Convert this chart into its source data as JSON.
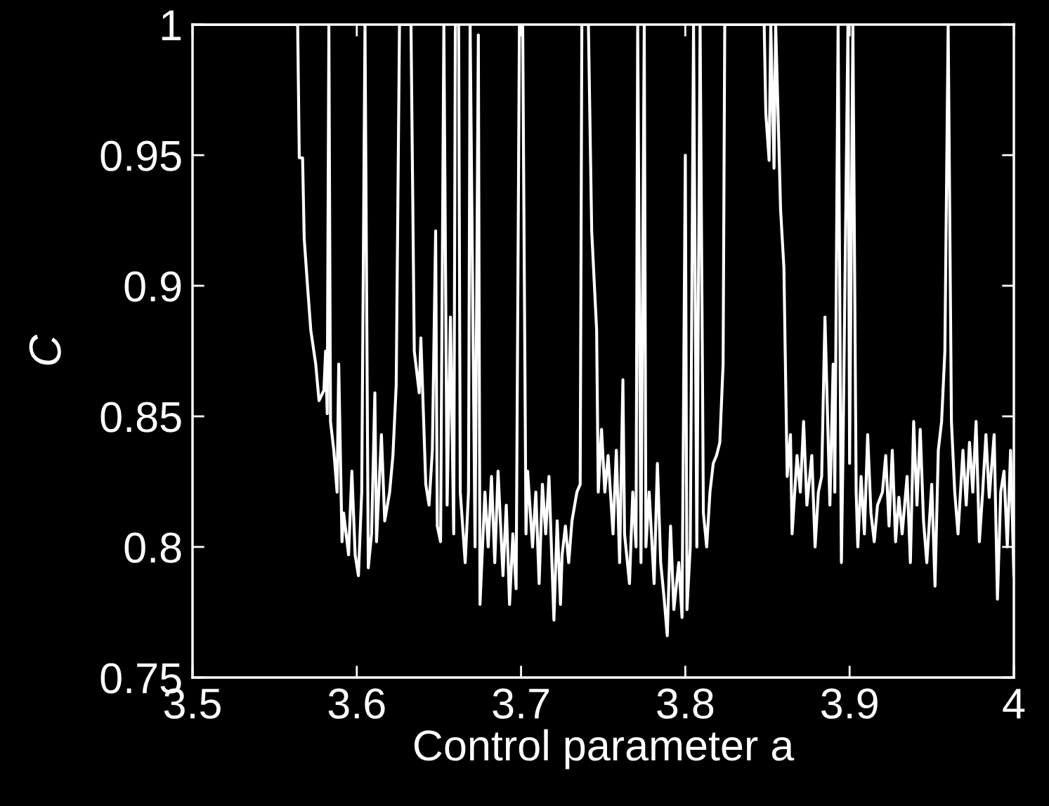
{
  "chart_data": {
    "type": "line",
    "xlabel": "Control parameter a",
    "ylabel": "C",
    "xlim": [
      3.5,
      4
    ],
    "ylim": [
      0.75,
      1
    ],
    "xticks": [
      3.5,
      3.6,
      3.7,
      3.8,
      3.9,
      4
    ],
    "yticks": [
      0.75,
      0.8,
      0.85,
      0.9,
      0.95,
      1
    ],
    "grid": false,
    "legend": false,
    "marker": "none",
    "line_style": "solid",
    "series": [
      {
        "color": "#ffffff",
        "x": [
          3.5,
          3.564,
          3.565,
          3.567,
          3.568,
          3.57,
          3.572,
          3.575,
          3.577,
          3.58,
          3.581,
          3.582,
          3.583,
          3.584,
          3.586,
          3.588,
          3.589,
          3.591,
          3.592,
          3.595,
          3.597,
          3.599,
          3.601,
          3.603,
          3.605,
          3.607,
          3.609,
          3.611,
          3.612,
          3.615,
          3.617,
          3.62,
          3.622,
          3.624,
          3.626,
          3.633,
          3.635,
          3.638,
          3.639,
          3.642,
          3.644,
          3.646,
          3.648,
          3.649,
          3.651,
          3.653,
          3.655,
          3.657,
          3.659,
          3.66,
          3.662,
          3.663,
          3.666,
          3.668,
          3.669,
          3.672,
          3.674,
          3.675,
          3.678,
          3.68,
          3.682,
          3.684,
          3.686,
          3.689,
          3.691,
          3.693,
          3.695,
          3.697,
          3.699,
          3.701,
          3.703,
          3.704,
          3.707,
          3.709,
          3.711,
          3.713,
          3.715,
          3.717,
          3.72,
          3.722,
          3.724,
          3.725,
          3.727,
          3.729,
          3.731,
          3.734,
          3.736,
          3.737,
          3.741,
          3.743,
          3.746,
          3.747,
          3.749,
          3.751,
          3.753,
          3.756,
          3.758,
          3.76,
          3.762,
          3.763,
          3.766,
          3.768,
          3.77,
          3.771,
          3.773,
          3.775,
          3.776,
          3.778,
          3.781,
          3.783,
          3.785,
          3.787,
          3.789,
          3.791,
          3.793,
          3.796,
          3.798,
          3.8,
          3.801,
          3.803,
          3.805,
          3.807,
          3.809,
          3.811,
          3.813,
          3.815,
          3.817,
          3.819,
          3.821,
          3.823,
          3.824,
          3.848,
          3.849,
          3.851,
          3.852,
          3.854,
          3.855,
          3.858,
          3.86,
          3.862,
          3.864,
          3.865,
          3.868,
          3.87,
          3.872,
          3.874,
          3.877,
          3.879,
          3.881,
          3.883,
          3.885,
          3.888,
          3.89,
          3.891,
          3.893,
          3.895,
          3.896,
          3.899,
          3.9,
          3.902,
          3.904,
          3.905,
          3.907,
          3.909,
          3.911,
          3.913,
          3.915,
          3.917,
          3.92,
          3.922,
          3.924,
          3.926,
          3.928,
          3.93,
          3.932,
          3.935,
          3.937,
          3.939,
          3.941,
          3.943,
          3.945,
          3.947,
          3.95,
          3.952,
          3.954,
          3.956,
          3.958,
          3.96,
          3.962,
          3.964,
          3.966,
          3.969,
          3.971,
          3.973,
          3.975,
          3.977,
          3.979,
          3.981,
          3.983,
          3.985,
          3.988,
          3.99,
          3.992,
          3.994,
          3.996,
          3.998,
          4.0
        ],
        "values": [
          1,
          1,
          0.949,
          0.949,
          0.918,
          0.9,
          0.883,
          0.87,
          0.856,
          0.86,
          0.875,
          0.851,
          1,
          0.848,
          0.837,
          0.821,
          0.87,
          0.802,
          0.813,
          0.797,
          0.829,
          0.797,
          0.789,
          0.821,
          1,
          0.792,
          0.805,
          0.859,
          0.802,
          0.843,
          0.81,
          0.821,
          0.835,
          0.862,
          1,
          1,
          0.875,
          0.859,
          0.88,
          0.824,
          0.816,
          0.837,
          0.921,
          0.808,
          0.802,
          1,
          0.816,
          0.888,
          0.805,
          1,
          1,
          0.821,
          0.794,
          0.821,
          1,
          0.8,
          0.996,
          0.778,
          0.821,
          0.8,
          0.827,
          0.794,
          0.829,
          0.789,
          0.816,
          0.778,
          0.805,
          0.784,
          1,
          1,
          0.805,
          0.829,
          0.8,
          0.821,
          0.786,
          0.824,
          0.805,
          0.827,
          0.772,
          0.81,
          0.778,
          0.797,
          0.808,
          0.794,
          0.81,
          0.821,
          0.824,
          1,
          1,
          0.921,
          0.883,
          0.821,
          0.845,
          0.821,
          0.835,
          0.805,
          0.837,
          0.794,
          0.864,
          0.805,
          0.786,
          0.821,
          0.8,
          1,
          0.794,
          1,
          0.8,
          0.821,
          0.786,
          0.832,
          0.794,
          0.781,
          0.766,
          0.808,
          0.776,
          0.794,
          0.773,
          0.95,
          0.776,
          0.8,
          1,
          0.8,
          1,
          0.813,
          0.8,
          0.821,
          0.832,
          0.835,
          0.84,
          0.87,
          1,
          1,
          0.966,
          0.948,
          1,
          0.945,
          1,
          0.929,
          0.907,
          0.827,
          0.843,
          0.805,
          0.835,
          0.821,
          0.848,
          0.816,
          0.835,
          0.8,
          0.821,
          0.827,
          0.888,
          0.816,
          0.87,
          0.821,
          1,
          0.794,
          0.837,
          1,
          0.832,
          1,
          0.821,
          0.8,
          0.827,
          0.805,
          0.843,
          0.813,
          0.802,
          0.816,
          0.821,
          0.835,
          0.808,
          0.837,
          0.802,
          0.819,
          0.805,
          0.827,
          0.794,
          0.848,
          0.816,
          0.845,
          0.81,
          0.794,
          0.824,
          0.785,
          0.837,
          0.848,
          0.875,
          1,
          0.848,
          0.821,
          0.805,
          0.837,
          0.816,
          0.84,
          0.821,
          0.848,
          0.802,
          0.821,
          0.843,
          0.819,
          0.843,
          0.78,
          0.821,
          0.829,
          0.8,
          0.837,
          0.789
        ]
      }
    ]
  }
}
